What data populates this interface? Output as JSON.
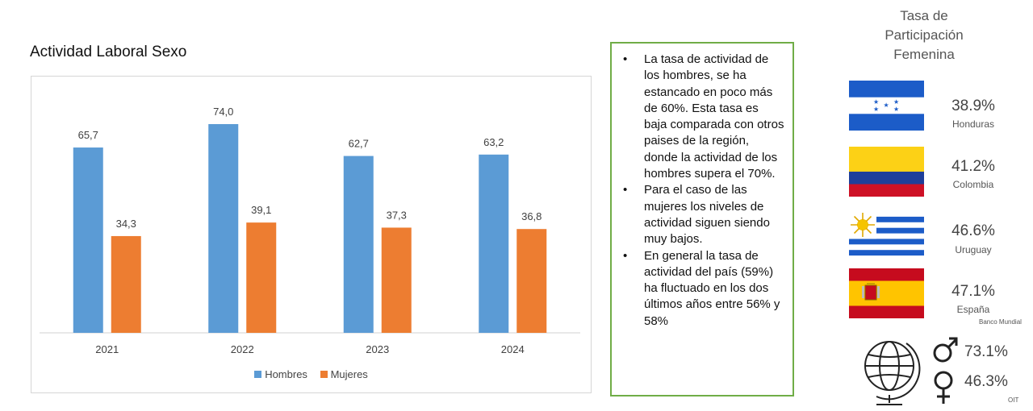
{
  "chart_data": {
    "type": "bar",
    "title": "Actividad Laboral Sexo",
    "categories": [
      "2021",
      "2022",
      "2023",
      "2024"
    ],
    "series": [
      {
        "name": "Hombres",
        "color": "#5b9bd5",
        "values": [
          65.7,
          74.0,
          62.7,
          63.2
        ],
        "labels": [
          "65,7",
          "74,0",
          "62,7",
          "63,2"
        ]
      },
      {
        "name": "Mujeres",
        "color": "#ed7d31",
        "values": [
          34.3,
          39.1,
          37.3,
          36.8
        ],
        "labels": [
          "34,3",
          "39,1",
          "37,3",
          "36,8"
        ]
      }
    ],
    "ylim": [
      0,
      80
    ],
    "grid": false,
    "legend_position": "bottom"
  },
  "notes": {
    "bullets": [
      "La tasa de actividad de los hombres, se ha estancado en poco más de 60%. Esta tasa es baja comparada con otros paises de la región, donde la actividad de los hombres supera el 70%.",
      "Para el caso de las mujeres los niveles de actividad siguen siendo muy bajos.",
      "En general la tasa de actividad del país (59%) ha fluctuado en los dos últimos años entre 56% y 58%"
    ]
  },
  "side": {
    "title": "Tasa de Participación Femenina",
    "countries": [
      {
        "pct": "38.9%",
        "name": "Honduras",
        "flag": "honduras"
      },
      {
        "pct": "41.2%",
        "name": "Colombia",
        "flag": "colombia"
      },
      {
        "pct": "46.6%",
        "name": "Uruguay",
        "flag": "uruguay"
      },
      {
        "pct": "47.1%",
        "name": "España",
        "flag": "spain"
      }
    ],
    "source_wb": "Banco Mundial",
    "oit": {
      "male_pct": "73.1%",
      "female_pct": "46.3%",
      "source": "OIT"
    }
  }
}
